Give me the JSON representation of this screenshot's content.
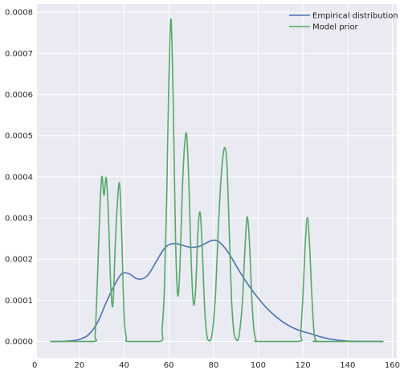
{
  "chart_data": {
    "type": "line",
    "title": "",
    "xlabel": "",
    "ylabel": "",
    "xlim": [
      1,
      162
    ],
    "ylim": [
      -4e-05,
      0.00082
    ],
    "xticks": [
      0,
      20,
      40,
      60,
      80,
      100,
      120,
      140,
      160
    ],
    "yticks": [
      0.0,
      0.0001,
      0.0002,
      0.0003,
      0.0004,
      0.0005,
      0.0006,
      0.0007,
      0.0008
    ],
    "xtick_labels": [
      "0",
      "20",
      "40",
      "60",
      "80",
      "100",
      "120",
      "140",
      "160"
    ],
    "ytick_labels": [
      "0.0000",
      "0.0001",
      "0.0002",
      "0.0003",
      "0.0004",
      "0.0005",
      "0.0006",
      "0.0007",
      "0.0008"
    ],
    "grid": true,
    "legend_position": "top-right",
    "background": "#EAEAF2",
    "series": [
      {
        "name": "Empirical distribution",
        "color": "#4C72B0",
        "x": [
          7,
          12,
          16,
          20,
          24,
          28,
          32,
          36,
          39,
          42,
          44,
          46,
          48,
          50,
          52,
          55,
          58,
          61,
          64,
          67,
          70,
          73,
          76,
          79,
          82,
          85,
          88,
          92,
          96,
          100,
          104,
          108,
          112,
          116,
          120,
          124,
          128,
          132,
          136,
          140,
          145,
          150,
          156
        ],
        "y": [
          0.0,
          3e-07,
          1.5e-06,
          5e-06,
          1.6e-05,
          4.5e-05,
          9.5e-05,
          0.00014,
          0.000165,
          0.000165,
          0.000158,
          0.000152,
          0.000152,
          0.000158,
          0.000172,
          0.0002,
          0.000226,
          0.000237,
          0.000237,
          0.000232,
          0.000229,
          0.00023,
          0.000237,
          0.000245,
          0.000244,
          0.000228,
          0.000204,
          0.000167,
          0.000134,
          0.000105,
          8e-05,
          6e-05,
          4.4e-05,
          3.2e-05,
          2.4e-05,
          1.8e-05,
          1.1e-05,
          6e-06,
          3e-06,
          1e-06,
          3e-07,
          1e-07,
          0.0
        ]
      },
      {
        "name": "Model prior",
        "color": "#55A868",
        "x": [
          7,
          26,
          27,
          28,
          29,
          30,
          31,
          32,
          33,
          34,
          35,
          36,
          37,
          38,
          39,
          40,
          41,
          42,
          56,
          57,
          58,
          59,
          60,
          61,
          62,
          63,
          64,
          65,
          66,
          67,
          68,
          69,
          70,
          71,
          72,
          73,
          74,
          75,
          76,
          77,
          78,
          79,
          80,
          81,
          82,
          83,
          84,
          85,
          86,
          87,
          88,
          89,
          90,
          91,
          92,
          93,
          94,
          95,
          96,
          97,
          98,
          99,
          100,
          118,
          119,
          120,
          121,
          122,
          123,
          124,
          125,
          126,
          127,
          156
        ],
        "y": [
          0.0,
          0.0,
          1.4e-05,
          0.00014,
          0.0003,
          0.0004,
          0.000355,
          0.000398,
          0.000305,
          0.000138,
          8.8e-05,
          0.000228,
          0.000337,
          0.000382,
          0.000245,
          6e-05,
          1e-05,
          0.0,
          0.0,
          3e-05,
          0.000125,
          0.000335,
          0.00063,
          0.000783,
          0.000572,
          0.000252,
          0.000112,
          0.000185,
          0.00036,
          0.000472,
          0.000502,
          0.00038,
          0.000196,
          9.2e-05,
          0.000126,
          0.000265,
          0.000314,
          0.000223,
          8.5e-05,
          1.6e-05,
          2e-06,
          8e-06,
          4.8e-05,
          0.000125,
          0.000258,
          0.000366,
          0.000438,
          0.000471,
          0.000433,
          0.000274,
          0.000111,
          2.8e-05,
          6e-06,
          4e-06,
          3.8e-05,
          0.000102,
          0.000218,
          0.000302,
          0.000249,
          0.00012,
          3.2e-05,
          4e-06,
          0.0,
          0.0,
          2e-05,
          0.00011,
          0.000232,
          0.000301,
          0.000232,
          0.00011,
          2e-05,
          2e-06,
          0.0,
          0.0
        ]
      }
    ]
  }
}
